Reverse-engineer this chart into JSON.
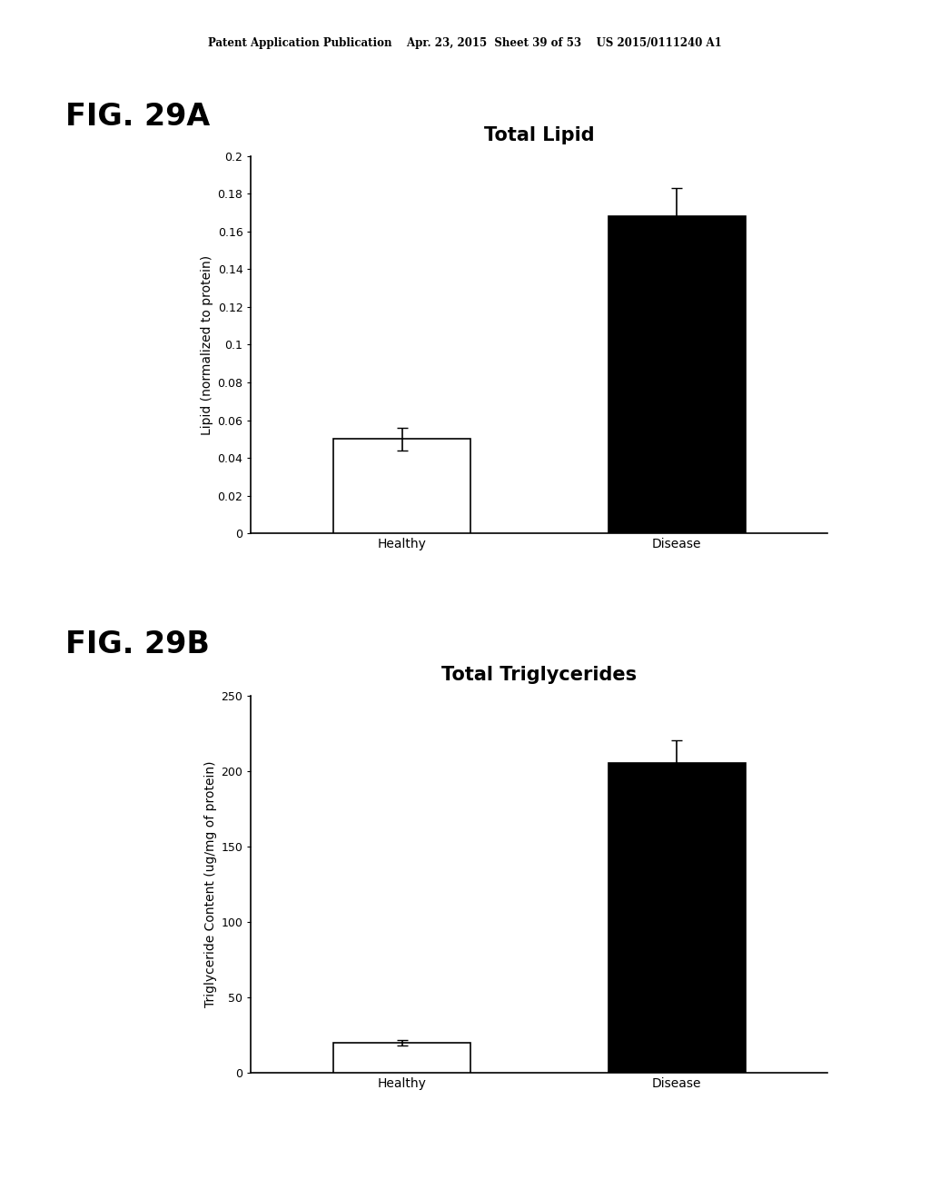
{
  "header_text": "Patent Application Publication    Apr. 23, 2015  Sheet 39 of 53    US 2015/0111240 A1",
  "fig_a_label": "FIG. 29A",
  "fig_b_label": "FIG. 29B",
  "chart_a": {
    "title": "Total Lipid",
    "categories": [
      "Healthy",
      "Disease"
    ],
    "values": [
      0.05,
      0.168
    ],
    "errors": [
      0.006,
      0.015
    ],
    "bar_colors": [
      "#ffffff",
      "#000000"
    ],
    "bar_edgecolors": [
      "#000000",
      "#000000"
    ],
    "ylabel": "Lipid (normalized to protein)",
    "ylim": [
      0,
      0.2
    ],
    "yticks": [
      0,
      0.02,
      0.04,
      0.06,
      0.08,
      0.1,
      0.12,
      0.14,
      0.16,
      0.18,
      0.2
    ],
    "ytick_labels": [
      "0",
      "0.02",
      "0.04",
      "0.06",
      "0.08",
      "0.1",
      "0.12",
      "0.14",
      "0.16",
      "0.18",
      "0.2"
    ],
    "bar_width": 0.5
  },
  "chart_b": {
    "title": "Total Triglycerides",
    "categories": [
      "Healthy",
      "Disease"
    ],
    "values": [
      20,
      205
    ],
    "errors": [
      2,
      15
    ],
    "bar_colors": [
      "#ffffff",
      "#000000"
    ],
    "bar_edgecolors": [
      "#000000",
      "#000000"
    ],
    "ylabel": "Triglyceride Content (ug/mg of protein)",
    "ylim": [
      0,
      250
    ],
    "yticks": [
      0,
      50,
      100,
      150,
      200,
      250
    ],
    "ytick_labels": [
      "0",
      "50",
      "100",
      "150",
      "200",
      "250"
    ],
    "bar_width": 0.5
  },
  "background_color": "#ffffff",
  "text_color": "#000000",
  "title_fontsize": 15,
  "axis_label_fontsize": 10,
  "tick_fontsize": 9,
  "fig_label_fontsize": 24,
  "header_fontsize": 8.5
}
